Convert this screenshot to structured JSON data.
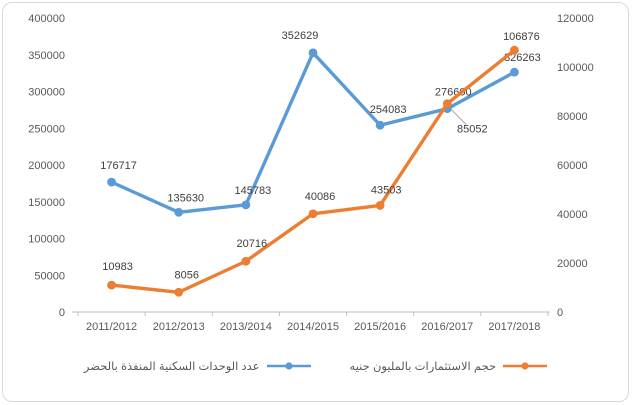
{
  "chart_data": {
    "type": "line",
    "title": "",
    "categories": [
      "2011/2012",
      "2012/2013",
      "2013/2014",
      "2014/2015",
      "2015/2016",
      "2016/2017",
      "2017/2018"
    ],
    "series": [
      {
        "name": "عدد الوحدات السكنية المنفذة بالحضر",
        "axis": "left",
        "color": "#5B9BD5",
        "values": [
          176717,
          135630,
          145783,
          352629,
          254083,
          276600,
          326263
        ]
      },
      {
        "name": "حجم الاستثمارات بالمليون جنيه",
        "axis": "right",
        "color": "#ED7D31",
        "values": [
          10983,
          8056,
          20716,
          40086,
          43503,
          85052,
          106876
        ]
      }
    ],
    "left_axis": {
      "min": 0,
      "max": 400000,
      "step": 50000,
      "tick_labels": [
        "400000",
        "350000",
        "300000",
        "250000",
        "200000",
        "150000",
        "100000",
        "50000",
        "0"
      ]
    },
    "right_axis": {
      "min": 0,
      "max": 120000,
      "step": 20000,
      "tick_labels": [
        "120000",
        "100000",
        "80000",
        "60000",
        "40000",
        "20000",
        "0"
      ]
    },
    "grid": false,
    "legend_position": "bottom",
    "data_labels_shown": true
  },
  "legend": {
    "items": [
      {
        "label": "عدد الوحدات السكنية المنفذة بالحضر",
        "color": "#5B9BD5"
      },
      {
        "label": "حجم الاستثمارات بالمليون جنيه",
        "color": "#ED7D31"
      }
    ]
  },
  "colors": {
    "series_blue": "#5B9BD5",
    "series_orange": "#ED7D31",
    "axis_text": "#595959",
    "data_label_text": "#404040",
    "axis_line": "#BFBFBF",
    "leader_line": "#A6A6A6",
    "chart_border": "#D9D9D9",
    "background": "#FFFFFF"
  }
}
